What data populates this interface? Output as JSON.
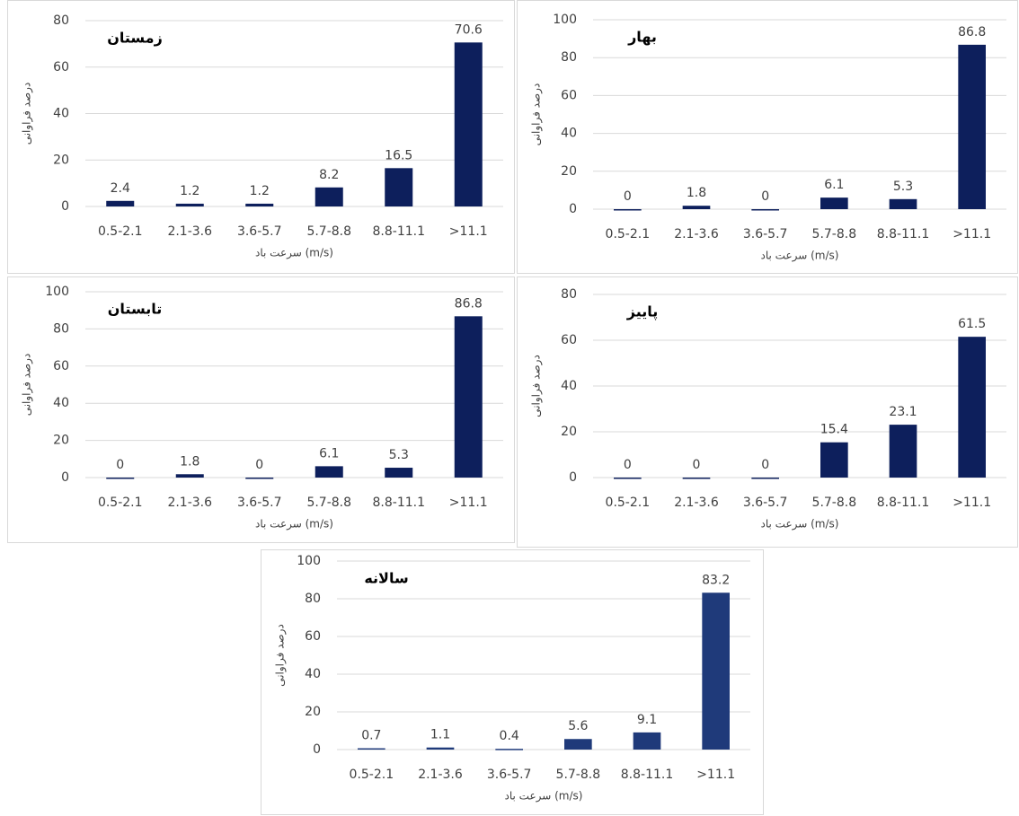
{
  "chart_data": [
    {
      "type": "bar",
      "title": "زمستان",
      "y_label": "درصد فراوانی",
      "x_label": "سرعت باد (m/s)",
      "categories": [
        "0.5-2.1",
        "2.1-3.6",
        "3.6-5.7",
        "5.7-8.8",
        "8.8-11.1",
        ">11.1"
      ],
      "values": [
        2.4,
        1.2,
        1.2,
        8.2,
        16.5,
        70.6
      ],
      "color": "#0d1f5c",
      "ylim": [
        0,
        80
      ],
      "yticks": [
        0,
        20,
        40,
        60,
        80
      ],
      "grid": true
    },
    {
      "type": "bar",
      "title": "بهار",
      "y_label": "درصد فراوانی",
      "x_label": "سرعت باد (m/s)",
      "categories": [
        "0.5-2.1",
        "2.1-3.6",
        "3.6-5.7",
        "5.7-8.8",
        "8.8-11.1",
        ">11.1"
      ],
      "values": [
        0,
        1.8,
        0,
        6.1,
        5.3,
        86.8
      ],
      "color": "#0d1f5c",
      "ylim": [
        0,
        100
      ],
      "yticks": [
        0,
        20,
        40,
        60,
        80,
        100
      ],
      "grid": true
    },
    {
      "type": "bar",
      "title": "تابستان",
      "y_label": "درصد فراوانی",
      "x_label": "سرعت باد (m/s)",
      "categories": [
        "0.5-2.1",
        "2.1-3.6",
        "3.6-5.7",
        "5.7-8.8",
        "8.8-11.1",
        ">11.1"
      ],
      "values": [
        0,
        1.8,
        0,
        6.1,
        5.3,
        86.8
      ],
      "color": "#0d1f5c",
      "ylim": [
        0,
        100
      ],
      "yticks": [
        0,
        20,
        40,
        60,
        80,
        100
      ],
      "grid": true
    },
    {
      "type": "bar",
      "title": "پاییز",
      "y_label": "درصد فراوانی",
      "x_label": "سرعت باد (m/s)",
      "categories": [
        "0.5-2.1",
        "2.1-3.6",
        "3.6-5.7",
        "5.7-8.8",
        "8.8-11.1",
        ">11.1"
      ],
      "values": [
        0,
        0,
        0,
        15.4,
        23.1,
        61.5
      ],
      "color": "#0d1f5c",
      "ylim": [
        0,
        80
      ],
      "yticks": [
        0,
        20,
        40,
        60,
        80
      ],
      "grid": true
    },
    {
      "type": "bar",
      "title": "سالانه",
      "y_label": "درصد فراوانی",
      "x_label": "سرعت باد (m/s)",
      "categories": [
        "0.5-2.1",
        "2.1-3.6",
        "3.6-5.7",
        "5.7-8.8",
        "8.8-11.1",
        ">11.1"
      ],
      "values": [
        0.7,
        1.1,
        0.4,
        5.6,
        9.1,
        83.2
      ],
      "color": "#1f3a7a",
      "ylim": [
        0,
        100
      ],
      "yticks": [
        0,
        20,
        40,
        60,
        80,
        100
      ],
      "grid": true
    }
  ]
}
